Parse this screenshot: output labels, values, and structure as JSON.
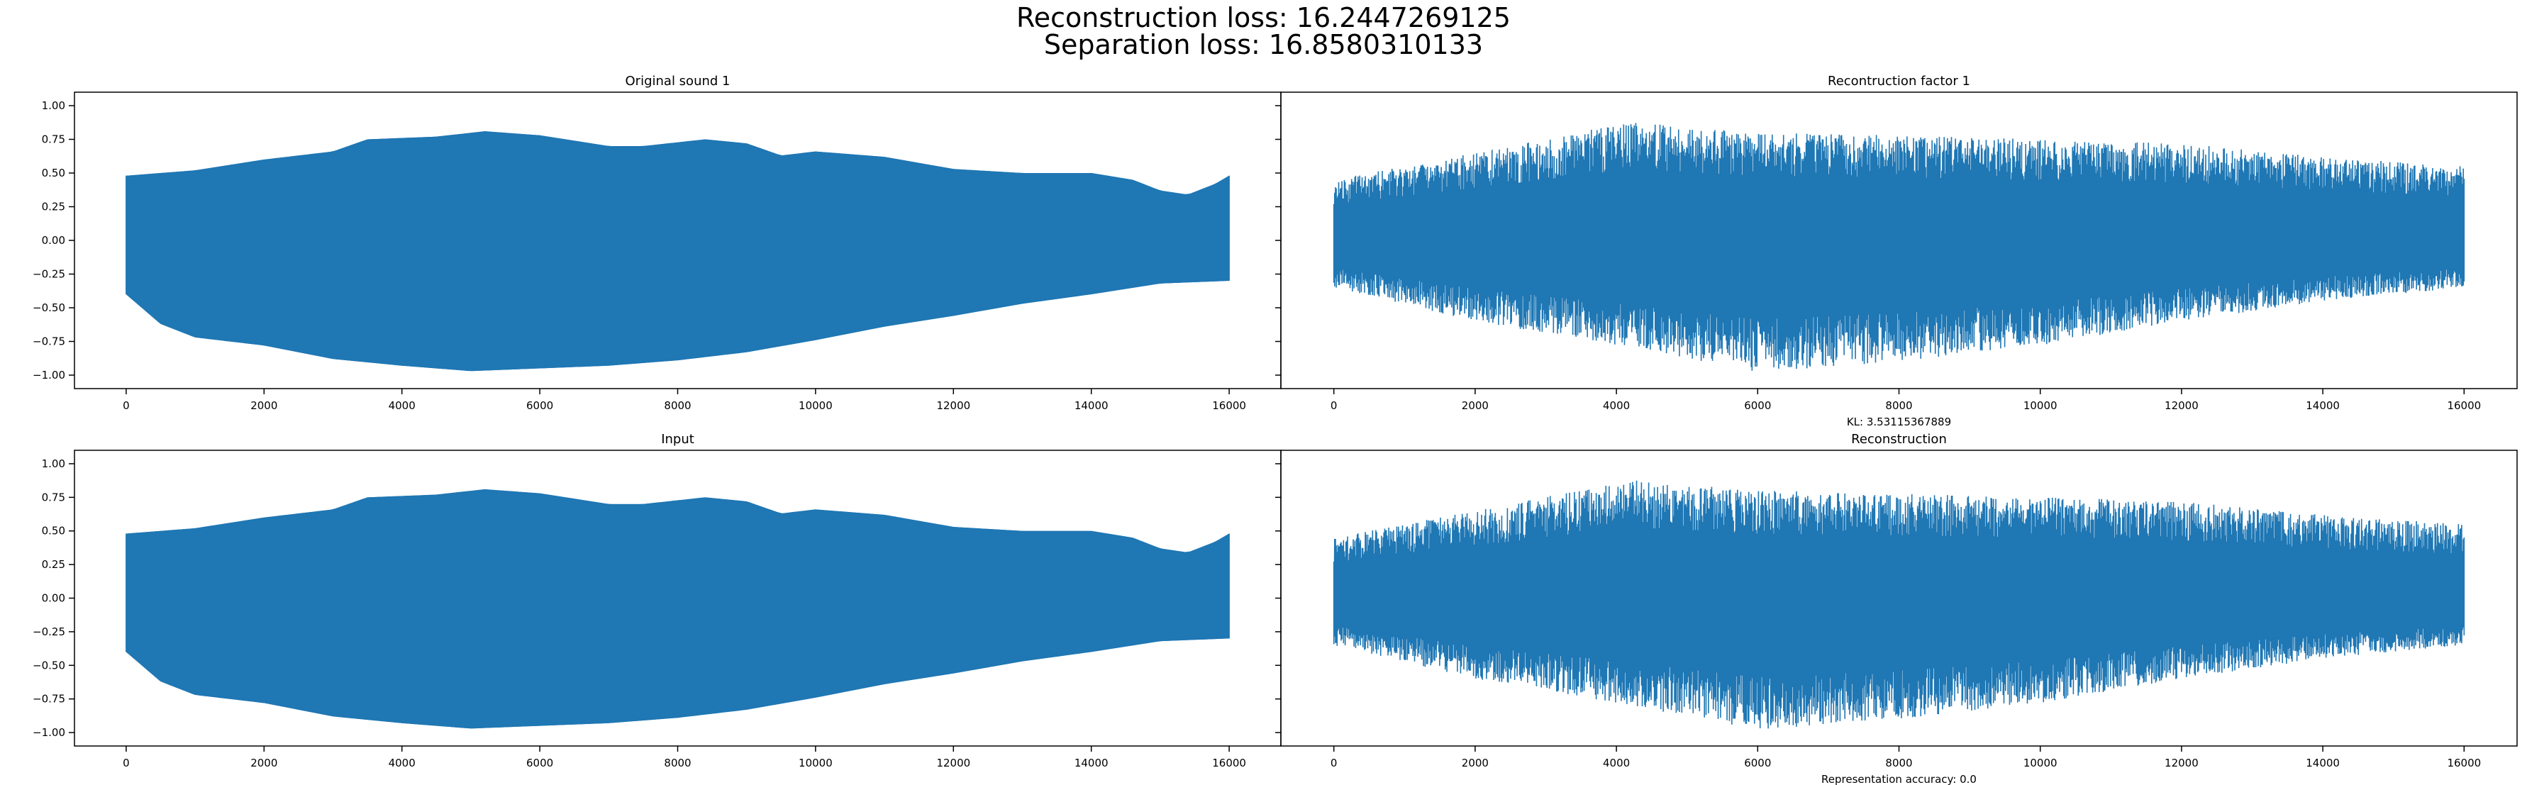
{
  "figure": {
    "suptitle_line1": "Reconstruction loss: 16.2447269125",
    "suptitle_line2": "Separation loss: 16.8580310133"
  },
  "colors": {
    "series": "#1f77b4",
    "axes": "#000000",
    "background": "#ffffff"
  },
  "chart_data": [
    {
      "type": "line",
      "title": "Original sound 1",
      "xlabel": "",
      "ylabel": "",
      "xlim": [
        -750,
        16750
      ],
      "ylim": [
        -1.1,
        1.1
      ],
      "xticks": [
        0,
        2000,
        4000,
        6000,
        8000,
        10000,
        12000,
        14000,
        16000
      ],
      "yticks": [
        1.0,
        0.75,
        0.5,
        0.25,
        0.0,
        -0.25,
        -0.5,
        -0.75,
        -1.0
      ],
      "ytick_labels": [
        "1.00",
        "0.75",
        "0.50",
        "0.25",
        "0.00",
        "−0.25",
        "−0.50",
        "−0.75",
        "−1.00"
      ],
      "grid": false,
      "series": [
        {
          "kind": "dense_oscillation",
          "x_range": [
            0,
            16000
          ],
          "upper_envelope": [
            [
              0,
              0.48
            ],
            [
              1000,
              0.52
            ],
            [
              2000,
              0.6
            ],
            [
              3000,
              0.66
            ],
            [
              3500,
              0.75
            ],
            [
              4500,
              0.77
            ],
            [
              5200,
              0.81
            ],
            [
              6000,
              0.78
            ],
            [
              7000,
              0.7
            ],
            [
              7500,
              0.7
            ],
            [
              8400,
              0.75
            ],
            [
              9000,
              0.72
            ],
            [
              9500,
              0.63
            ],
            [
              10000,
              0.66
            ],
            [
              11000,
              0.62
            ],
            [
              12000,
              0.53
            ],
            [
              13000,
              0.5
            ],
            [
              14000,
              0.5
            ],
            [
              14600,
              0.45
            ],
            [
              15000,
              0.37
            ],
            [
              15400,
              0.34
            ],
            [
              15800,
              0.42
            ],
            [
              16000,
              0.48
            ]
          ],
          "lower_envelope": [
            [
              0,
              -0.4
            ],
            [
              500,
              -0.62
            ],
            [
              1000,
              -0.72
            ],
            [
              2000,
              -0.78
            ],
            [
              3000,
              -0.88
            ],
            [
              4000,
              -0.93
            ],
            [
              5000,
              -0.97
            ],
            [
              6000,
              -0.95
            ],
            [
              7000,
              -0.93
            ],
            [
              8000,
              -0.89
            ],
            [
              9000,
              -0.83
            ],
            [
              10000,
              -0.74
            ],
            [
              11000,
              -0.64
            ],
            [
              12000,
              -0.56
            ],
            [
              13000,
              -0.47
            ],
            [
              14000,
              -0.4
            ],
            [
              15000,
              -0.32
            ],
            [
              16000,
              -0.3
            ]
          ]
        }
      ]
    },
    {
      "type": "line",
      "title": "Recontruction factor 1",
      "xlabel": "KL: 3.53115367889",
      "ylabel": "",
      "xlim": [
        -750,
        16750
      ],
      "ylim": [
        -1.1,
        1.1
      ],
      "xticks": [
        0,
        2000,
        4000,
        6000,
        8000,
        10000,
        12000,
        14000,
        16000
      ],
      "grid": false,
      "sharey": true,
      "series": [
        {
          "kind": "noise",
          "x_range": [
            0,
            16000
          ],
          "upper_envelope": [
            [
              0,
              0.45
            ],
            [
              2000,
              0.65
            ],
            [
              4200,
              0.88
            ],
            [
              6000,
              0.8
            ],
            [
              8000,
              0.78
            ],
            [
              10000,
              0.75
            ],
            [
              12000,
              0.72
            ],
            [
              14000,
              0.62
            ],
            [
              16000,
              0.55
            ]
          ],
          "lower_envelope": [
            [
              0,
              -0.35
            ],
            [
              2000,
              -0.6
            ],
            [
              4000,
              -0.78
            ],
            [
              6000,
              -0.98
            ],
            [
              8000,
              -0.9
            ],
            [
              10000,
              -0.78
            ],
            [
              12000,
              -0.6
            ],
            [
              14000,
              -0.45
            ],
            [
              16000,
              -0.35
            ]
          ]
        }
      ]
    },
    {
      "type": "line",
      "title": "Input",
      "xlabel": "",
      "ylabel": "",
      "xlim": [
        -750,
        16750
      ],
      "ylim": [
        -1.1,
        1.1
      ],
      "xticks": [
        0,
        2000,
        4000,
        6000,
        8000,
        10000,
        12000,
        14000,
        16000
      ],
      "yticks": [
        1.0,
        0.75,
        0.5,
        0.25,
        0.0,
        -0.25,
        -0.5,
        -0.75,
        -1.0
      ],
      "ytick_labels": [
        "1.00",
        "0.75",
        "0.50",
        "0.25",
        "0.00",
        "−0.25",
        "−0.50",
        "−0.75",
        "−1.00"
      ],
      "grid": false,
      "series": [
        {
          "kind": "dense_oscillation",
          "x_range": [
            0,
            16000
          ],
          "upper_envelope": [
            [
              0,
              0.48
            ],
            [
              1000,
              0.52
            ],
            [
              2000,
              0.6
            ],
            [
              3000,
              0.66
            ],
            [
              3500,
              0.75
            ],
            [
              4500,
              0.77
            ],
            [
              5200,
              0.81
            ],
            [
              6000,
              0.78
            ],
            [
              7000,
              0.7
            ],
            [
              7500,
              0.7
            ],
            [
              8400,
              0.75
            ],
            [
              9000,
              0.72
            ],
            [
              9500,
              0.63
            ],
            [
              10000,
              0.66
            ],
            [
              11000,
              0.62
            ],
            [
              12000,
              0.53
            ],
            [
              13000,
              0.5
            ],
            [
              14000,
              0.5
            ],
            [
              14600,
              0.45
            ],
            [
              15000,
              0.37
            ],
            [
              15400,
              0.34
            ],
            [
              15800,
              0.42
            ],
            [
              16000,
              0.48
            ]
          ],
          "lower_envelope": [
            [
              0,
              -0.4
            ],
            [
              500,
              -0.62
            ],
            [
              1000,
              -0.72
            ],
            [
              2000,
              -0.78
            ],
            [
              3000,
              -0.88
            ],
            [
              4000,
              -0.93
            ],
            [
              5000,
              -0.97
            ],
            [
              6000,
              -0.95
            ],
            [
              7000,
              -0.93
            ],
            [
              8000,
              -0.89
            ],
            [
              9000,
              -0.83
            ],
            [
              10000,
              -0.74
            ],
            [
              11000,
              -0.64
            ],
            [
              12000,
              -0.56
            ],
            [
              13000,
              -0.47
            ],
            [
              14000,
              -0.4
            ],
            [
              15000,
              -0.32
            ],
            [
              16000,
              -0.3
            ]
          ]
        }
      ]
    },
    {
      "type": "line",
      "title": "Reconstruction",
      "xlabel": "Representation accuracy: 0.0",
      "ylabel": "",
      "xlim": [
        -750,
        16750
      ],
      "ylim": [
        -1.1,
        1.1
      ],
      "xticks": [
        0,
        2000,
        4000,
        6000,
        8000,
        10000,
        12000,
        14000,
        16000
      ],
      "grid": false,
      "sharey": true,
      "series": [
        {
          "kind": "noise",
          "x_range": [
            0,
            16000
          ],
          "upper_envelope": [
            [
              0,
              0.45
            ],
            [
              2000,
              0.65
            ],
            [
              4200,
              0.88
            ],
            [
              6000,
              0.8
            ],
            [
              8000,
              0.78
            ],
            [
              10000,
              0.75
            ],
            [
              12000,
              0.72
            ],
            [
              14000,
              0.62
            ],
            [
              16000,
              0.55
            ]
          ],
          "lower_envelope": [
            [
              0,
              -0.35
            ],
            [
              2000,
              -0.6
            ],
            [
              4000,
              -0.78
            ],
            [
              6000,
              -0.98
            ],
            [
              8000,
              -0.9
            ],
            [
              10000,
              -0.78
            ],
            [
              12000,
              -0.6
            ],
            [
              14000,
              -0.45
            ],
            [
              16000,
              -0.35
            ]
          ]
        }
      ]
    }
  ]
}
